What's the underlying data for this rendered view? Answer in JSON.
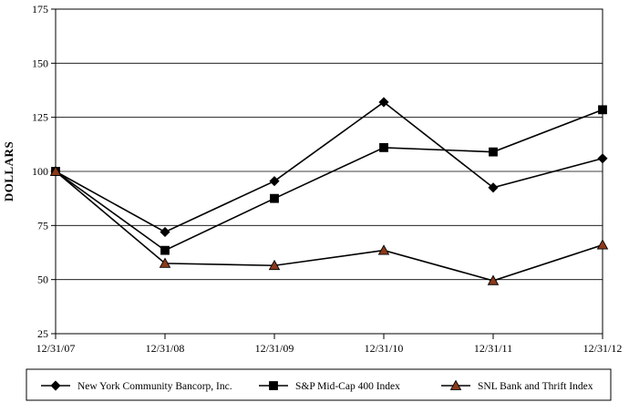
{
  "chart_data": {
    "type": "line",
    "title": "",
    "xlabel": "",
    "ylabel": "DOLLARS",
    "ylim": [
      25,
      175
    ],
    "yticks": [
      "25",
      "50",
      "75",
      "100",
      "125",
      "150",
      "175"
    ],
    "categories": [
      "12/31/07",
      "12/31/08",
      "12/31/09",
      "12/31/10",
      "12/31/11",
      "12/31/12"
    ],
    "grid": "horizontal",
    "legend_position": "bottom",
    "series": [
      {
        "name": "New York Community Bancorp, Inc.",
        "marker": "diamond",
        "color": "#000000",
        "marker_fill": "#000000",
        "values": [
          100,
          72,
          95.5,
          132,
          92.5,
          106
        ]
      },
      {
        "name": "S&P Mid-Cap 400 Index",
        "marker": "square",
        "color": "#000000",
        "marker_fill": "#000000",
        "values": [
          100,
          63.5,
          87.5,
          111,
          109,
          128.5
        ]
      },
      {
        "name": "SNL Bank and Thrift Index",
        "marker": "triangle",
        "color": "#000000",
        "marker_fill": "#8b3a1a",
        "values": [
          100,
          57.5,
          56.5,
          63.5,
          49.5,
          66
        ]
      }
    ]
  }
}
